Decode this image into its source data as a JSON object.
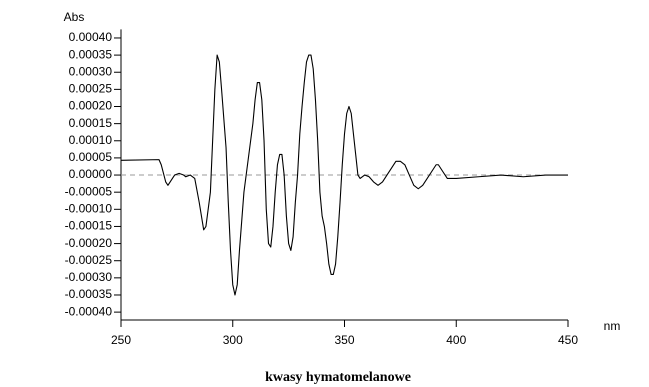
{
  "chart_data": {
    "type": "line",
    "title": "kwasy  hymatomelanowe",
    "y_label": "Abs",
    "x_label": "nm",
    "color": "#000000",
    "zero_line": true,
    "xlim": [
      250,
      450
    ],
    "xticks": [
      250,
      300,
      350,
      400,
      450
    ],
    "ylim": [
      -0.000423,
      0.000425
    ],
    "yticks": [
      {
        "value": -0.0004,
        "label": "-0.00040"
      },
      {
        "value": -0.00035,
        "label": "-0.00035"
      },
      {
        "value": -0.0003,
        "label": "-0.00030"
      },
      {
        "value": -0.00025,
        "label": "-0.00025"
      },
      {
        "value": -0.0002,
        "label": "-0.00020"
      },
      {
        "value": -0.00015,
        "label": "-0.00015"
      },
      {
        "value": -0.0001,
        "label": "-0.00010"
      },
      {
        "value": -5e-05,
        "label": "-0.00005"
      },
      {
        "value": 0,
        "label": "0.00000"
      },
      {
        "value": 5e-05,
        "label": "0.00005"
      },
      {
        "value": 0.0001,
        "label": "0.00010"
      },
      {
        "value": 0.00015,
        "label": "0.00015"
      },
      {
        "value": 0.0002,
        "label": "0.00020"
      },
      {
        "value": 0.00025,
        "label": "0.00025"
      },
      {
        "value": 0.0003,
        "label": "0.00030"
      },
      {
        "value": 0.00035,
        "label": "0.00035"
      },
      {
        "value": 0.0004,
        "label": "0.00040"
      }
    ],
    "x": [
      250,
      267,
      268,
      270,
      271,
      273,
      274,
      276,
      278,
      279,
      281,
      283,
      285,
      287,
      288,
      290,
      291,
      292,
      293,
      294,
      295,
      297,
      298,
      299,
      300,
      301,
      302,
      303,
      305,
      307,
      309,
      310,
      311,
      312,
      313,
      314,
      315,
      316,
      317,
      318,
      319,
      320,
      321,
      322,
      323,
      324,
      325,
      326,
      327,
      328,
      329,
      330,
      331,
      332,
      333,
      334,
      335,
      336,
      337,
      338,
      339,
      340,
      341,
      342,
      343,
      344,
      345,
      346,
      347,
      348,
      349,
      350,
      351,
      352,
      353,
      354,
      355,
      356,
      357,
      359,
      361,
      363,
      365,
      367,
      369,
      371,
      373,
      375,
      377,
      379,
      381,
      383,
      385,
      387,
      389,
      391,
      392,
      394,
      396,
      400,
      410,
      420,
      430,
      440,
      450
    ],
    "values": [
      4.3e-05,
      4.5e-05,
      3e-05,
      -2e-05,
      -3e-05,
      -1e-05,
      0.0,
      5e-06,
      0.0,
      -5e-06,
      0.0,
      -1e-05,
      -8e-05,
      -0.00016,
      -0.00015,
      -5e-05,
      0.0001,
      0.00025,
      0.00035,
      0.00033,
      0.00025,
      8e-05,
      -8e-05,
      -0.00022,
      -0.00032,
      -0.00035,
      -0.00032,
      -0.00022,
      -5e-05,
      5e-05,
      0.00015,
      0.00022,
      0.00027,
      0.00027,
      0.00022,
      0.0001,
      -0.0001,
      -0.0002,
      -0.00021,
      -0.00015,
      -5e-05,
      3e-05,
      6e-05,
      6e-05,
      0.0,
      -0.00012,
      -0.0002,
      -0.00022,
      -0.00018,
      -8e-05,
      0.0,
      0.00012,
      0.0002,
      0.00027,
      0.00033,
      0.00035,
      0.00035,
      0.00031,
      0.00022,
      0.0001,
      -5e-05,
      -0.00012,
      -0.00015,
      -0.0002,
      -0.00026,
      -0.00029,
      -0.00029,
      -0.00026,
      -0.00018,
      -8e-05,
      3e-05,
      0.00012,
      0.00018,
      0.0002,
      0.00018,
      0.00012,
      6e-05,
      0.0,
      -1e-05,
      0.0,
      -5e-06,
      -2e-05,
      -3e-05,
      -2e-05,
      0.0,
      2e-05,
      4e-05,
      4e-05,
      3e-05,
      0.0,
      -3e-05,
      -4e-05,
      -3e-05,
      -1e-05,
      1e-05,
      3e-05,
      3e-05,
      1e-05,
      -1e-05,
      -1e-05,
      -5e-06,
      0.0,
      -5e-06,
      0.0,
      0.0
    ]
  }
}
